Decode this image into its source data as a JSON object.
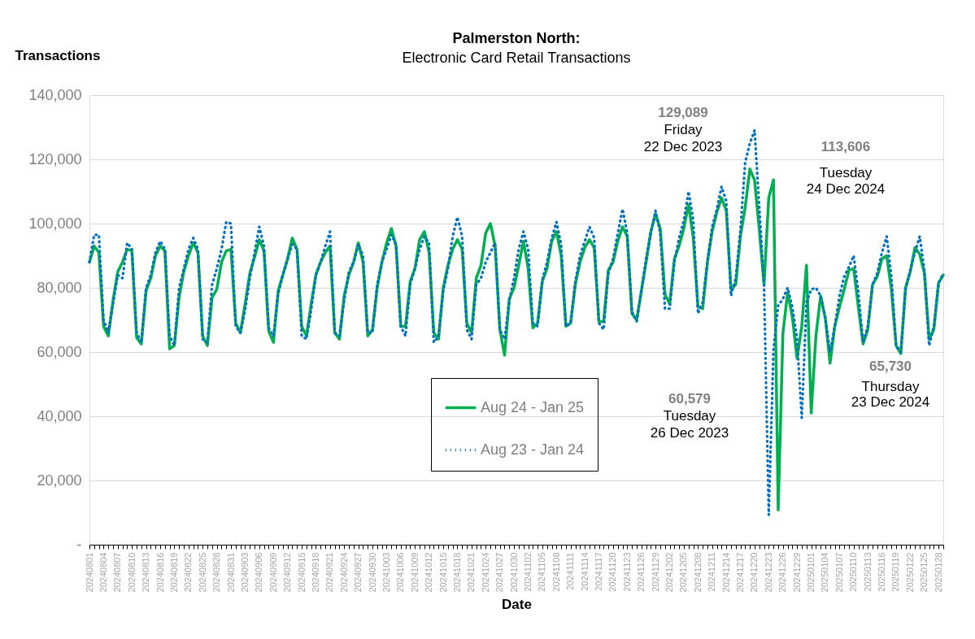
{
  "chart_data": {
    "type": "line",
    "title": "Palmerston North:",
    "subtitle": "Electronic Card Retail Transactions",
    "xlabel": "Date",
    "ylabel": "Transactions",
    "categories": [
      "20240801",
      null,
      null,
      "20240804",
      null,
      null,
      "20240807",
      null,
      null,
      "20240810",
      null,
      null,
      "20240813",
      null,
      null,
      "20240816",
      null,
      null,
      "20240819",
      null,
      null,
      "20240822",
      null,
      null,
      "20240825",
      null,
      null,
      "20240828",
      null,
      null,
      "20240831",
      null,
      null,
      "20240903",
      null,
      null,
      "20240906",
      null,
      null,
      "20240909",
      null,
      null,
      "20240912",
      null,
      null,
      "20240915",
      null,
      null,
      "20240918",
      null,
      null,
      "20240921",
      null,
      null,
      "20240924",
      null,
      null,
      "20240927",
      null,
      null,
      "20240930",
      null,
      null,
      "20241003",
      null,
      null,
      "20241006",
      null,
      null,
      "20241009",
      null,
      null,
      "20241012",
      null,
      null,
      "20241015",
      null,
      null,
      "20241018",
      null,
      null,
      "20241021",
      null,
      null,
      "20241024",
      null,
      null,
      "20241027",
      null,
      null,
      "20241030",
      null,
      null,
      "20241102",
      null,
      null,
      "20241105",
      null,
      null,
      "20241108",
      null,
      null,
      "20241111",
      null,
      null,
      "20241114",
      null,
      null,
      "20241117",
      null,
      null,
      "20241120",
      null,
      null,
      "20241123",
      null,
      null,
      "20241126",
      null,
      null,
      "20241129",
      null,
      null,
      "20241202",
      null,
      null,
      "20241205",
      null,
      null,
      "20241208",
      null,
      null,
      "20241211",
      null,
      null,
      "20241214",
      null,
      null,
      "20241217",
      null,
      null,
      "20241220",
      null,
      null,
      "20241223",
      null,
      null,
      "20241226",
      null,
      null,
      "20241229",
      null,
      null,
      "20250101",
      null,
      null,
      "20250104",
      null,
      null,
      "20250107",
      null,
      null,
      "20250110",
      null,
      null,
      "20250113",
      null,
      null,
      "20250116",
      null,
      null,
      "20250119",
      null,
      null,
      "20250122",
      null,
      null,
      "20250125",
      null,
      null,
      "20250128",
      null
    ],
    "series": [
      {
        "name": "Aug 24 - Jan 25",
        "color": "#00b050",
        "line_style": "solid",
        "values": [
          88000,
          93000,
          91000,
          68000,
          65000,
          76000,
          85000,
          88000,
          92000,
          91500,
          64500,
          62500,
          79000,
          83000,
          90000,
          93000,
          91500,
          61000,
          62000,
          77000,
          85000,
          90000,
          94000,
          91000,
          65000,
          62000,
          77000,
          79500,
          88000,
          91500,
          92000,
          69000,
          66000,
          75000,
          84500,
          89500,
          95000,
          91500,
          66500,
          63000,
          79000,
          84000,
          89000,
          95500,
          92000,
          68000,
          65000,
          75000,
          84000,
          88000,
          91000,
          93000,
          66000,
          64000,
          77500,
          84000,
          88000,
          94000,
          88000,
          65000,
          67000,
          80000,
          88000,
          94000,
          98500,
          93000,
          68000,
          68000,
          82000,
          86000,
          95000,
          97500,
          91000,
          66000,
          64000,
          80000,
          87000,
          92000,
          95000,
          92000,
          69000,
          66000,
          83000,
          87000,
          97000,
          100000,
          93000,
          67000,
          59000,
          76500,
          80000,
          87000,
          94500,
          86000,
          67500,
          69000,
          82000,
          86000,
          94500,
          97500,
          90000,
          68000,
          69000,
          81000,
          88000,
          92500,
          95000,
          92500,
          69500,
          69500,
          85500,
          88000,
          94500,
          99000,
          96000,
          72000,
          70000,
          79000,
          88000,
          97500,
          103000,
          98500,
          78000,
          75000,
          89000,
          93000,
          98500,
          106000,
          95500,
          74000,
          73500,
          88000,
          97500,
          103500,
          108000,
          104000,
          79500,
          81000,
          96000,
          105000,
          117000,
          113500,
          98000,
          81000,
          108000,
          113606,
          10800,
          65730,
          78500,
          71000,
          58000,
          68000,
          87000,
          41000,
          65000,
          77500,
          70500,
          56500,
          68000,
          74000,
          79500,
          85500,
          86000,
          74000,
          62500,
          67000,
          81000,
          83500,
          89000,
          90000,
          79500,
          62000,
          59500,
          80000,
          85000,
          92500,
          90500,
          84500,
          64000,
          67000,
          81500,
          84000
        ]
      },
      {
        "name": "Aug 23 - Jan 24",
        "color": "#0070c0",
        "line_style": "dotted",
        "values": [
          88000,
          96500,
          96500,
          70000,
          66000,
          75000,
          84000,
          83000,
          94000,
          92000,
          66000,
          63000,
          80000,
          84000,
          91000,
          94500,
          92000,
          65000,
          62000,
          80000,
          86000,
          92000,
          95500,
          92000,
          64000,
          63000,
          81000,
          86000,
          92000,
          100500,
          100000,
          68000,
          66000,
          73000,
          83000,
          91000,
          99000,
          93000,
          67500,
          65000,
          78000,
          84000,
          89000,
          93500,
          92000,
          65000,
          64000,
          73000,
          84000,
          88000,
          93000,
          97500,
          66000,
          65000,
          76000,
          85000,
          88000,
          93500,
          90000,
          66000,
          66000,
          81000,
          88000,
          92000,
          96500,
          93500,
          68000,
          65000,
          81000,
          86000,
          92000,
          96000,
          94000,
          63000,
          65000,
          79000,
          86000,
          96000,
          102000,
          96000,
          67000,
          64000,
          81000,
          83000,
          88000,
          91000,
          94000,
          67000,
          64000,
          76000,
          83000,
          92000,
          97500,
          92000,
          69000,
          68000,
          82500,
          88000,
          95500,
          100500,
          93500,
          68000,
          69000,
          82000,
          90000,
          94500,
          99000,
          95500,
          69000,
          67000,
          84500,
          89000,
          97000,
          104500,
          97000,
          72500,
          69500,
          79000,
          89000,
          97000,
          104000,
          97000,
          73500,
          73500,
          88000,
          95500,
          101000,
          110000,
          101000,
          72000,
          75500,
          88000,
          99000,
          104500,
          111500,
          107000,
          77500,
          83000,
          98000,
          119000,
          125000,
          129089,
          105000,
          81000,
          9300,
          60579,
          74500,
          76500,
          80000,
          74000,
          64000,
          39500,
          75500,
          79500,
          80000,
          77500,
          70500,
          60000,
          68000,
          77500,
          83500,
          86500,
          90000,
          78500,
          63000,
          68000,
          81000,
          84500,
          91000,
          96000,
          83500,
          62000,
          60000,
          79500,
          85500,
          91000,
          96000,
          85500,
          62000,
          68000,
          81500,
          84500
        ]
      }
    ],
    "ylim": [
      0,
      140000
    ],
    "yticks": [
      {
        "value": 0,
        "label": "-"
      },
      {
        "value": 20000,
        "label": "20,000"
      },
      {
        "value": 40000,
        "label": "40,000"
      },
      {
        "value": 60000,
        "label": "60,000"
      },
      {
        "value": 80000,
        "label": "80,000"
      },
      {
        "value": 100000,
        "label": "100,000"
      },
      {
        "value": 120000,
        "label": "120,000"
      },
      {
        "value": 140000,
        "label": "140,000"
      }
    ],
    "grid": "y",
    "legend": "bottom",
    "marker": "none",
    "annotations": [
      "129,089\nFriday\n22 Dec 2023",
      "113,606\nTuesday\n24 Dec 2024",
      "60,579\nTuesday\n26 Dec 2023",
      "65,730\nThursday\n23 Dec 2024"
    ]
  }
}
